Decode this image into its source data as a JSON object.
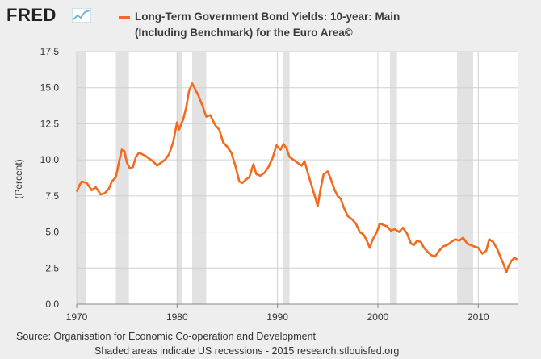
{
  "header": {
    "logo_text": "FRED",
    "logo_icon": "fred-chart-icon",
    "legend_label_line1": "Long-Term Government Bond Yields: 10-year: Main",
    "legend_label_line2": "(Including Benchmark) for the Euro Area©"
  },
  "footer": {
    "source": "Source: Organisation for Economic Co-operation and Development",
    "note": "Shaded areas indicate US recessions - 2015 research.stlouisfed.org"
  },
  "colors": {
    "series": "#f26b1d",
    "recession": "#e2e2e2",
    "plot_bg": "#ffffff",
    "page_bg": "#eeeeee"
  },
  "chart_data": {
    "type": "line",
    "title": "Long-Term Government Bond Yields: 10-year: Main (Including Benchmark) for the Euro Area©",
    "xlabel": "",
    "ylabel": "(Percent)",
    "xlim": [
      1970,
      2014
    ],
    "ylim": [
      0,
      17.5
    ],
    "x_ticks": [
      1970,
      1980,
      1990,
      2000,
      2010
    ],
    "y_ticks": [
      "0.0",
      "2.5",
      "5.0",
      "7.5",
      "10.0",
      "12.5",
      "15.0",
      "17.5"
    ],
    "grid": true,
    "recessions": [
      [
        1970.0,
        1970.9
      ],
      [
        1973.9,
        1975.2
      ],
      [
        1980.0,
        1980.5
      ],
      [
        1981.5,
        1982.9
      ],
      [
        1990.6,
        1991.2
      ],
      [
        2001.2,
        2001.9
      ],
      [
        2007.9,
        2009.5
      ]
    ],
    "series": [
      {
        "name": "Long-Term Government Bond Yields: 10-year: Main (Including Benchmark) for the Euro Area©",
        "x": [
          1970.0,
          1970.25,
          1970.5,
          1971.0,
          1971.5,
          1971.9,
          1972.4,
          1972.8,
          1973.2,
          1973.5,
          1973.9,
          1974.2,
          1974.5,
          1974.75,
          1975.0,
          1975.3,
          1975.6,
          1975.9,
          1976.2,
          1976.5,
          1976.8,
          1977.2,
          1977.6,
          1978.0,
          1978.4,
          1978.8,
          1979.2,
          1979.6,
          1980.0,
          1980.2,
          1980.6,
          1980.9,
          1981.2,
          1981.5,
          1981.8,
          1982.1,
          1982.5,
          1982.9,
          1983.3,
          1983.8,
          1984.2,
          1984.6,
          1985.0,
          1985.4,
          1985.8,
          1986.2,
          1986.5,
          1986.8,
          1987.2,
          1987.6,
          1987.9,
          1988.3,
          1988.7,
          1989.1,
          1989.5,
          1989.9,
          1990.3,
          1990.6,
          1990.9,
          1991.2,
          1991.6,
          1992.0,
          1992.4,
          1992.7,
          1993.1,
          1993.5,
          1993.8,
          1994.0,
          1994.3,
          1994.6,
          1995.0,
          1995.3,
          1995.7,
          1996.0,
          1996.3,
          1996.6,
          1997.0,
          1997.4,
          1997.8,
          1998.2,
          1998.6,
          1998.9,
          1999.2,
          1999.5,
          1999.9,
          2000.2,
          2000.5,
          2000.9,
          2001.3,
          2001.7,
          2002.1,
          2002.5,
          2002.9,
          2003.3,
          2003.6,
          2003.9,
          2004.3,
          2004.6,
          2005.0,
          2005.3,
          2005.7,
          2006.1,
          2006.5,
          2006.9,
          2007.3,
          2007.7,
          2008.1,
          2008.5,
          2008.9,
          2009.2,
          2009.6,
          2010.0,
          2010.4,
          2010.8,
          2011.1,
          2011.5,
          2011.9,
          2012.2,
          2012.5,
          2012.8,
          2013.0,
          2013.3,
          2013.6,
          2013.9
        ],
        "values": [
          7.8,
          8.2,
          8.5,
          8.4,
          7.9,
          8.1,
          7.6,
          7.7,
          8.0,
          8.5,
          8.8,
          9.8,
          10.7,
          10.6,
          9.8,
          9.4,
          9.5,
          10.2,
          10.5,
          10.4,
          10.3,
          10.1,
          9.9,
          9.6,
          9.8,
          10.0,
          10.4,
          11.2,
          12.6,
          12.1,
          12.8,
          13.6,
          14.8,
          15.3,
          14.9,
          14.5,
          13.8,
          13.0,
          13.1,
          12.4,
          12.1,
          11.2,
          10.9,
          10.5,
          9.6,
          8.5,
          8.4,
          8.6,
          8.8,
          9.7,
          9.0,
          8.9,
          9.1,
          9.5,
          10.1,
          11.0,
          10.7,
          11.1,
          10.8,
          10.2,
          10.0,
          9.8,
          9.6,
          9.9,
          8.9,
          8.0,
          7.3,
          6.8,
          8.0,
          9.0,
          9.2,
          8.7,
          7.9,
          7.5,
          7.3,
          6.7,
          6.1,
          5.9,
          5.6,
          5.0,
          4.8,
          4.4,
          3.9,
          4.5,
          5.0,
          5.6,
          5.5,
          5.4,
          5.1,
          5.2,
          5.0,
          5.3,
          4.9,
          4.2,
          4.1,
          4.4,
          4.3,
          3.9,
          3.6,
          3.4,
          3.3,
          3.7,
          4.0,
          4.1,
          4.3,
          4.5,
          4.4,
          4.6,
          4.2,
          4.1,
          4.0,
          3.9,
          3.5,
          3.7,
          4.5,
          4.3,
          3.8,
          3.3,
          2.8,
          2.2,
          2.6,
          3.0,
          3.2,
          3.1
        ]
      }
    ]
  }
}
